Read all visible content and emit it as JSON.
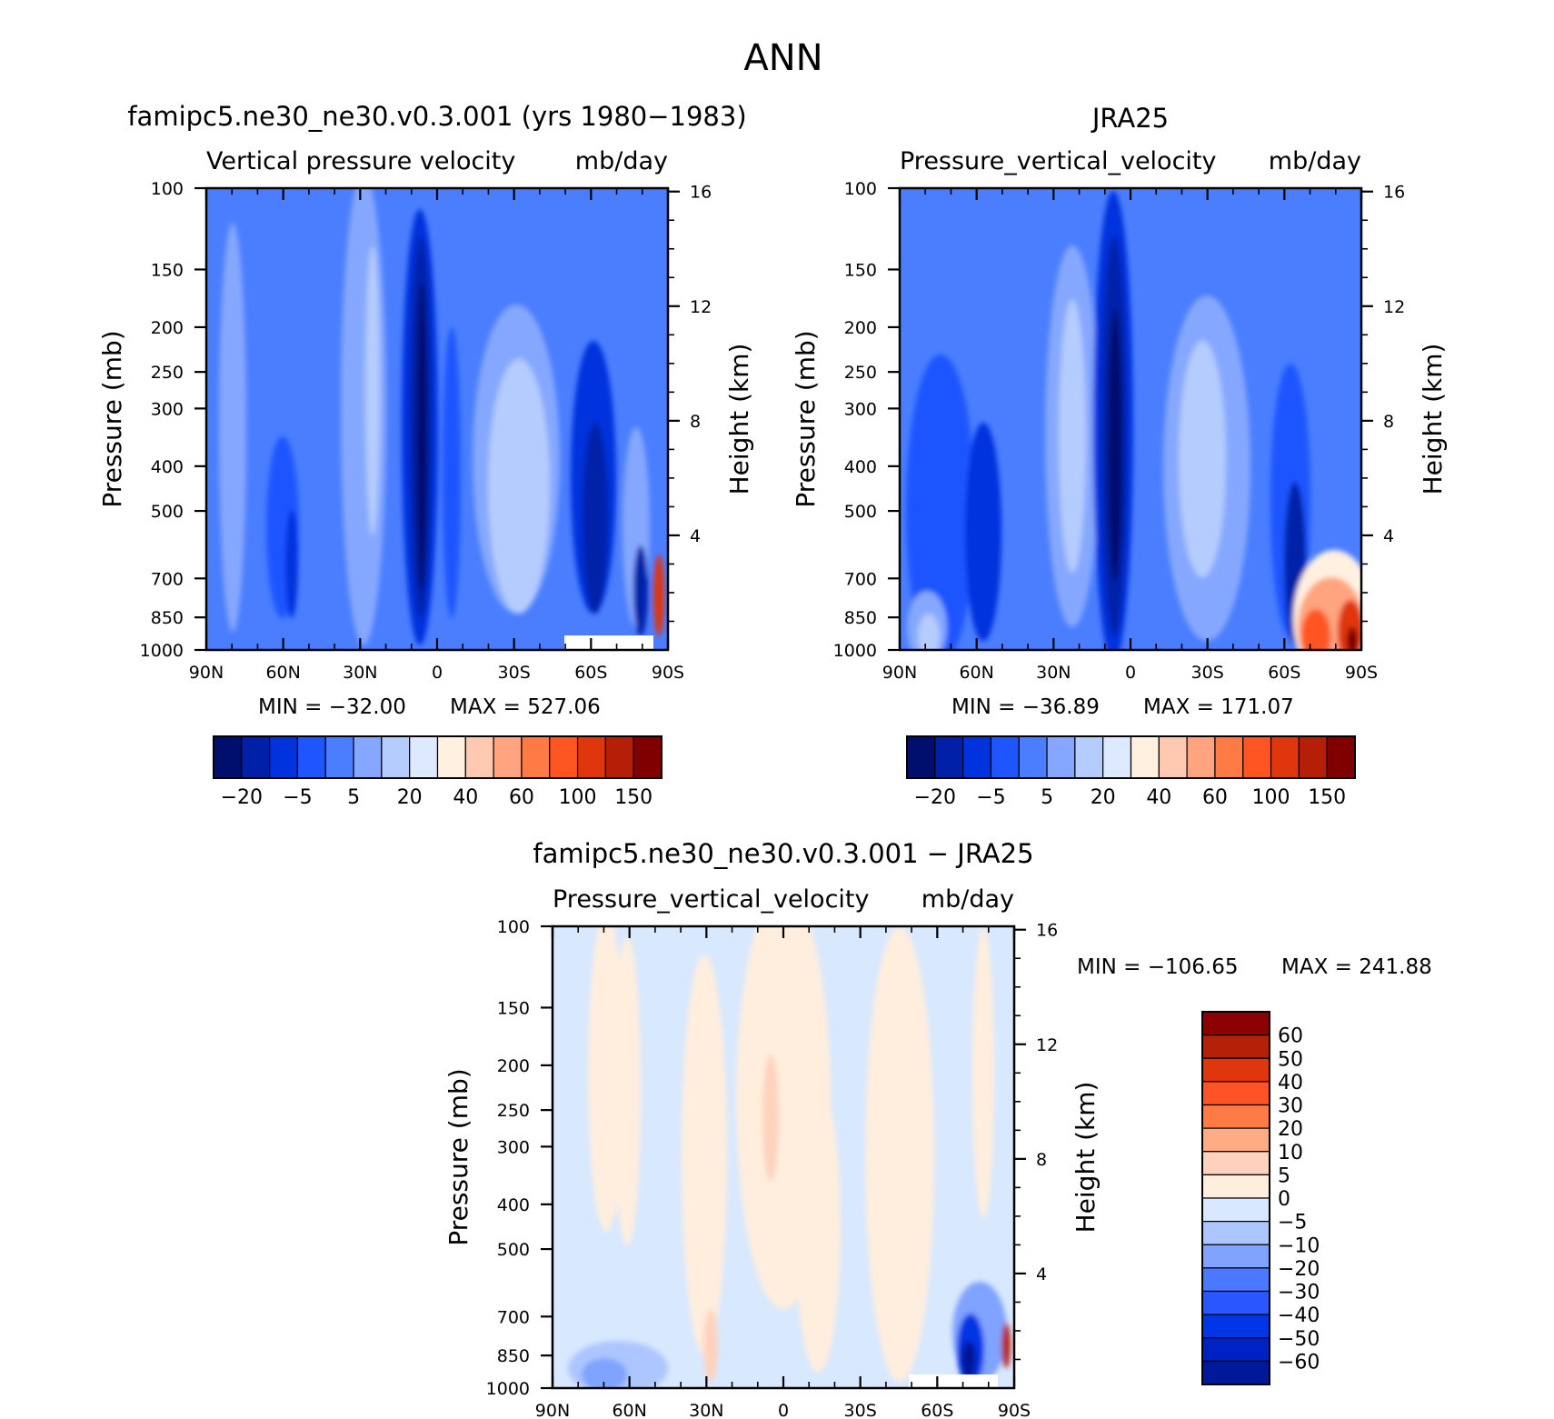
{
  "figure": {
    "title": "ANN"
  },
  "colors": {
    "model_obs_scale": [
      "#000f6e",
      "#0020a8",
      "#0033dd",
      "#1f55ff",
      "#4a7eff",
      "#85a7ff",
      "#b5ccff",
      "#dce9ff",
      "#fff0e0",
      "#ffc8b0",
      "#ffa47e",
      "#ff7a45",
      "#ff5522",
      "#e0360e",
      "#b51f08",
      "#800000"
    ],
    "diff_scale": [
      "#00189a",
      "#0022c4",
      "#0036e6",
      "#2a56ff",
      "#4a78ff",
      "#7fa3ff",
      "#aec6ff",
      "#d8e8ff",
      "#ffeedd",
      "#ffd2bd",
      "#ffac85",
      "#ff7a45",
      "#ff5226",
      "#e0360e",
      "#b52008",
      "#8b0000"
    ],
    "field_base": "#4a7eff",
    "diff_base": "#d8e8ff"
  },
  "chart_data": [
    {
      "type": "contour",
      "title": "famipc5.ne30_ne30.v0.3.001 (yrs 1980−1983)",
      "subtitle_left": "Vertical pressure velocity",
      "subtitle_right": "mb/day",
      "xlabel": "",
      "ylabel": "Pressure (mb)",
      "ylabel_right": "Height (km)",
      "x_ticks": [
        "90N",
        "60N",
        "30N",
        "0",
        "30S",
        "60S",
        "90S"
      ],
      "x_range": [
        90,
        -90
      ],
      "y_ticks": [
        100,
        150,
        200,
        250,
        300,
        400,
        500,
        700,
        850,
        1000
      ],
      "y_range": [
        100,
        1000
      ],
      "y_scale": "log",
      "height_ticks": [
        4,
        8,
        12,
        16
      ],
      "min_label": "MIN = −32.00",
      "max_label": "MAX = 527.06",
      "min": -32.0,
      "max": 527.06,
      "colorbar_labels": [
        "−20",
        "−5",
        "5",
        "20",
        "40",
        "60",
        "100",
        "150"
      ],
      "grid": false
    },
    {
      "type": "contour",
      "title": "JRA25",
      "subtitle_left": "Pressure_vertical_velocity",
      "subtitle_right": "mb/day",
      "xlabel": "",
      "ylabel": "Pressure (mb)",
      "ylabel_right": "Height (km)",
      "x_ticks": [
        "90N",
        "60N",
        "30N",
        "0",
        "30S",
        "60S",
        "90S"
      ],
      "x_range": [
        90,
        -90
      ],
      "y_ticks": [
        100,
        150,
        200,
        250,
        300,
        400,
        500,
        700,
        850,
        1000
      ],
      "y_range": [
        100,
        1000
      ],
      "y_scale": "log",
      "height_ticks": [
        4,
        8,
        12,
        16
      ],
      "min_label": "MIN = −36.89",
      "max_label": "MAX = 171.07",
      "min": -36.89,
      "max": 171.07,
      "colorbar_labels": [
        "−20",
        "−5",
        "5",
        "20",
        "40",
        "60",
        "100",
        "150"
      ],
      "grid": false
    },
    {
      "type": "contour",
      "title": "famipc5.ne30_ne30.v0.3.001 − JRA25",
      "subtitle_left": "Pressure_vertical_velocity",
      "subtitle_right": "mb/day",
      "xlabel": "",
      "ylabel": "Pressure (mb)",
      "ylabel_right": "Height (km)",
      "x_ticks": [
        "90N",
        "60N",
        "30N",
        "0",
        "30S",
        "60S",
        "90S"
      ],
      "x_range": [
        90,
        -90
      ],
      "y_ticks": [
        100,
        150,
        200,
        250,
        300,
        400,
        500,
        700,
        850,
        1000
      ],
      "y_range": [
        100,
        1000
      ],
      "y_scale": "log",
      "height_ticks": [
        4,
        8,
        12,
        16
      ],
      "min_label": "MIN = −106.65",
      "max_label": "MAX = 241.88",
      "min": -106.65,
      "max": 241.88,
      "colorbar_labels": [
        "60",
        "50",
        "40",
        "30",
        "20",
        "10",
        "5",
        "0",
        "−5",
        "−10",
        "−20",
        "−30",
        "−40",
        "−50",
        "−60"
      ],
      "grid": false
    }
  ]
}
